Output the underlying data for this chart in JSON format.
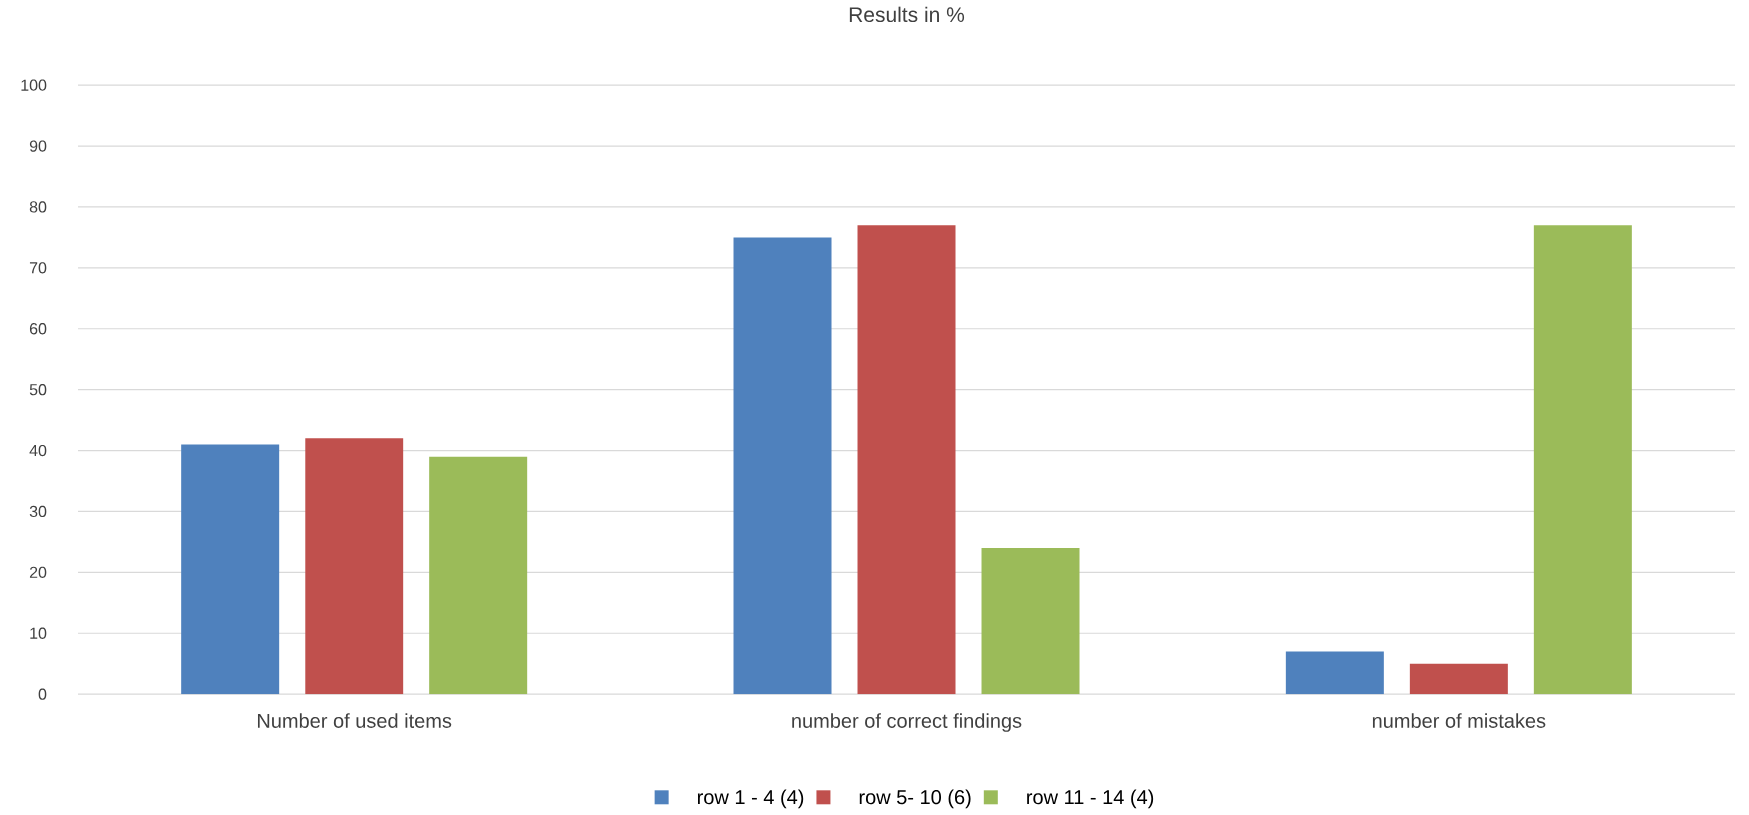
{
  "chart_data": {
    "type": "bar",
    "title": "Results in  %",
    "categories": [
      "Number of used items",
      "number of correct findings",
      "number of mistakes"
    ],
    "series": [
      {
        "name": "row 1 - 4 (4)",
        "color": "#4f81bd",
        "values": [
          41,
          75,
          7
        ]
      },
      {
        "name": "row 5- 10 (6)",
        "color": "#c0504d",
        "values": [
          42,
          77,
          5
        ]
      },
      {
        "name": "row 11 - 14 (4)",
        "color": "#9bbb59",
        "values": [
          39,
          24,
          77
        ]
      }
    ],
    "ylim": [
      0,
      100
    ],
    "yticks": [
      0,
      10,
      20,
      30,
      40,
      50,
      60,
      70,
      80,
      90,
      100
    ],
    "grid": "y",
    "legend": "bottom"
  }
}
